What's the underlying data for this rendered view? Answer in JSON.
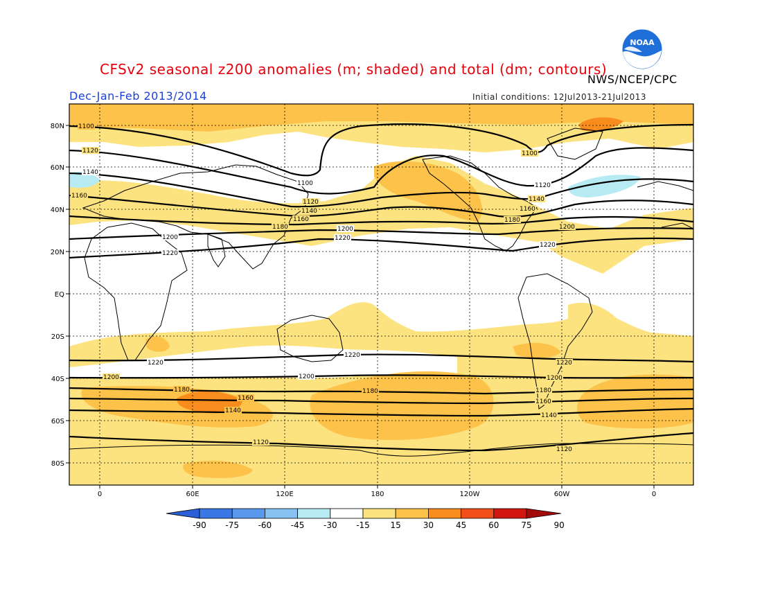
{
  "title": "CFSv2 seasonal z200 anomalies (m; shaded) and total (dm; contours)",
  "agency": "NWS/NCEP/CPC",
  "logo_text": "NOAA",
  "season": "Dec-Jan-Feb 2013/2014",
  "initial_conditions": "Initial conditions: 12Jul2013-21Jul2013",
  "map": {
    "lat_labels": [
      "80N",
      "60N",
      "40N",
      "20N",
      "EQ",
      "20S",
      "40S",
      "60S",
      "80S"
    ],
    "lon_labels": [
      "0",
      "60E",
      "120E",
      "180",
      "120W",
      "60W",
      "0"
    ],
    "lon_start": -20,
    "lon_end": 380,
    "lat_top": 90,
    "lat_bottom": -90,
    "gridlines": "dashed every 20 deg"
  },
  "contours": [
    {
      "value": "1100",
      "label": "1100"
    },
    {
      "value": "1120",
      "label": "1120"
    },
    {
      "value": "1140",
      "label": "1140"
    },
    {
      "value": "1160",
      "label": "1160"
    },
    {
      "value": "1180",
      "label": "1180"
    },
    {
      "value": "1200",
      "label": "1200"
    },
    {
      "value": "1220",
      "label": "1220"
    }
  ],
  "colorbar": {
    "labels": [
      "-90",
      "-75",
      "-60",
      "-45",
      "-30",
      "-15",
      "15",
      "30",
      "45",
      "60",
      "75",
      "90"
    ],
    "colors": [
      "#2a5fd8",
      "#3a78e6",
      "#5a98ee",
      "#87c2f3",
      "#b6ebf3",
      "#ffffff",
      "#fde37f",
      "#fcc24a",
      "#f88c1d",
      "#f2501a",
      "#d11710",
      "#a30a0a"
    ]
  }
}
